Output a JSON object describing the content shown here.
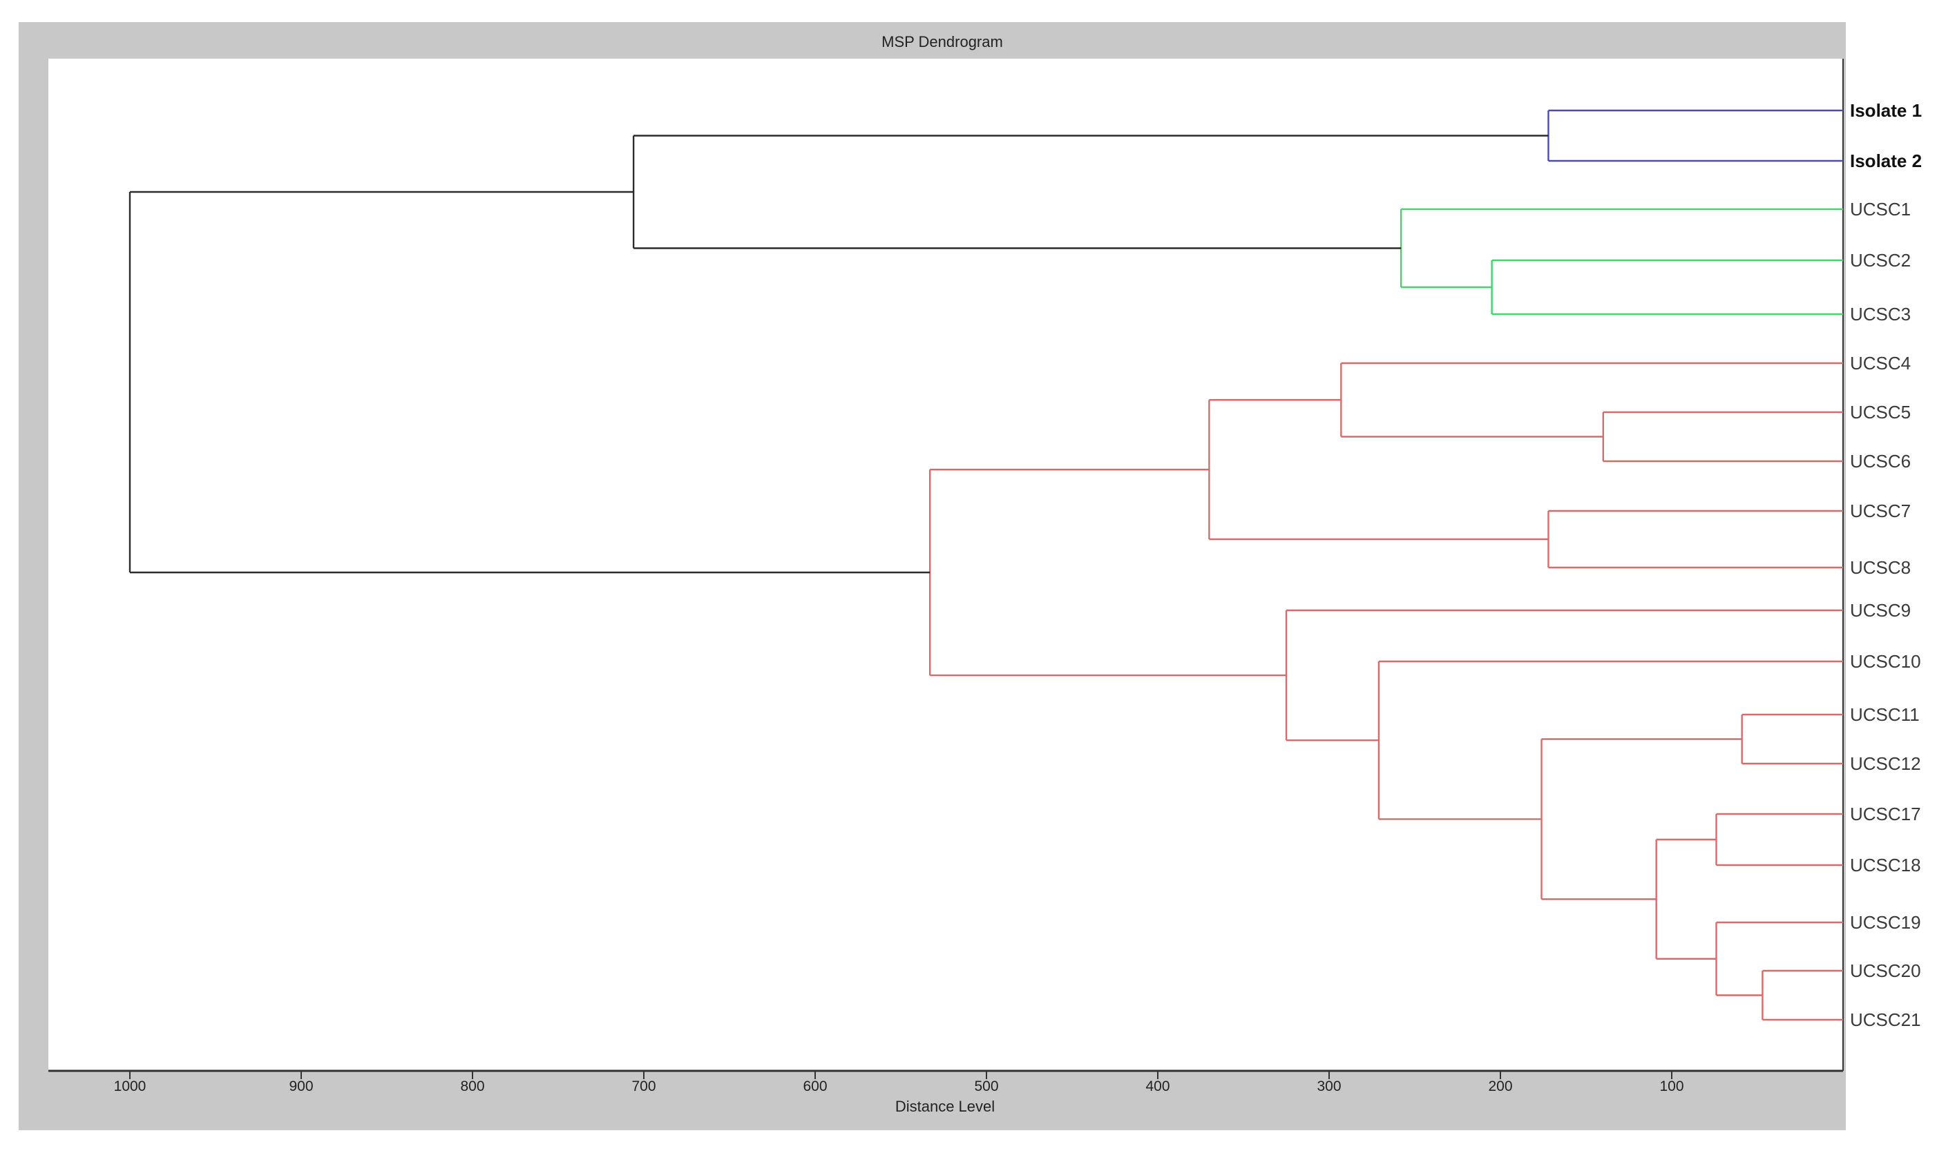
{
  "window": {
    "title": "MSP Dendrogram"
  },
  "colors": {
    "frame": "#c8c8c8",
    "plot_bg": "#ffffff",
    "axis": "#333333",
    "clusters": {
      "black": "#2b2b2b",
      "blue": "#4c4ca8",
      "green": "#3fd66a",
      "red": "#d96a6a"
    }
  },
  "chart_data": {
    "type": "dendrogram",
    "title": "MSP Dendrogram",
    "xlabel": "Distance Level",
    "ylabel": "",
    "xlim": [
      1000,
      0
    ],
    "xticks": [
      1000,
      900,
      800,
      700,
      600,
      500,
      400,
      300,
      200,
      100
    ],
    "grid": false,
    "leaves": [
      {
        "id": "L1",
        "label": "Isolate 1",
        "bold": true
      },
      {
        "id": "L2",
        "label": "Isolate 2",
        "bold": true
      },
      {
        "id": "L3",
        "label": "UCSC1",
        "bold": false
      },
      {
        "id": "L4",
        "label": "UCSC2",
        "bold": false
      },
      {
        "id": "L5",
        "label": "UCSC3",
        "bold": false
      },
      {
        "id": "L6",
        "label": "UCSC4",
        "bold": false
      },
      {
        "id": "L7",
        "label": "UCSC5",
        "bold": false
      },
      {
        "id": "L8",
        "label": "UCSC6",
        "bold": false
      },
      {
        "id": "L9",
        "label": "UCSC7",
        "bold": false
      },
      {
        "id": "L10",
        "label": "UCSC8",
        "bold": false
      },
      {
        "id": "L11",
        "label": "UCSC9",
        "bold": false
      },
      {
        "id": "L12",
        "label": "UCSC10",
        "bold": false
      },
      {
        "id": "L13",
        "label": "UCSC11",
        "bold": false
      },
      {
        "id": "L14",
        "label": "UCSC12",
        "bold": false
      },
      {
        "id": "L15",
        "label": "UCSC17",
        "bold": false
      },
      {
        "id": "L16",
        "label": "UCSC18",
        "bold": false
      },
      {
        "id": "L17",
        "label": "UCSC19",
        "bold": false
      },
      {
        "id": "L18",
        "label": "UCSC20",
        "bold": false
      },
      {
        "id": "L19",
        "label": "UCSC21",
        "bold": false
      }
    ],
    "merges": [
      {
        "id": "N1",
        "children": [
          "L1",
          "L2"
        ],
        "distance": 172,
        "color": "blue"
      },
      {
        "id": "N2",
        "children": [
          "L4",
          "L5"
        ],
        "distance": 205,
        "color": "green"
      },
      {
        "id": "N3",
        "children": [
          "L3",
          "N2"
        ],
        "distance": 258,
        "color": "green"
      },
      {
        "id": "N4",
        "children": [
          "N1",
          "N3"
        ],
        "distance": 706,
        "color": "black"
      },
      {
        "id": "N5",
        "children": [
          "L7",
          "L8"
        ],
        "distance": 140,
        "color": "red"
      },
      {
        "id": "N6",
        "children": [
          "L6",
          "N5"
        ],
        "distance": 293,
        "color": "red"
      },
      {
        "id": "N7",
        "children": [
          "L9",
          "L10"
        ],
        "distance": 172,
        "color": "red"
      },
      {
        "id": "N8",
        "children": [
          "N6",
          "N7"
        ],
        "distance": 370,
        "color": "red"
      },
      {
        "id": "N9",
        "children": [
          "L13",
          "L14"
        ],
        "distance": 59,
        "color": "red"
      },
      {
        "id": "N10",
        "children": [
          "L15",
          "L16"
        ],
        "distance": 74,
        "color": "red"
      },
      {
        "id": "N11",
        "children": [
          "L18",
          "L19"
        ],
        "distance": 47,
        "color": "red"
      },
      {
        "id": "N12",
        "children": [
          "L17",
          "N11"
        ],
        "distance": 74,
        "color": "red"
      },
      {
        "id": "N13",
        "children": [
          "N10",
          "N12"
        ],
        "distance": 109,
        "color": "red"
      },
      {
        "id": "N14",
        "children": [
          "N9",
          "N13"
        ],
        "distance": 176,
        "color": "red"
      },
      {
        "id": "N15",
        "children": [
          "L12",
          "N14"
        ],
        "distance": 271,
        "color": "red"
      },
      {
        "id": "N16",
        "children": [
          "L11",
          "N15"
        ],
        "distance": 325,
        "color": "red"
      },
      {
        "id": "N17",
        "children": [
          "N8",
          "N16"
        ],
        "distance": 533,
        "color": "red"
      },
      {
        "id": "N18",
        "children": [
          "N4",
          "N17"
        ],
        "distance": 1000,
        "color": "black"
      }
    ]
  }
}
